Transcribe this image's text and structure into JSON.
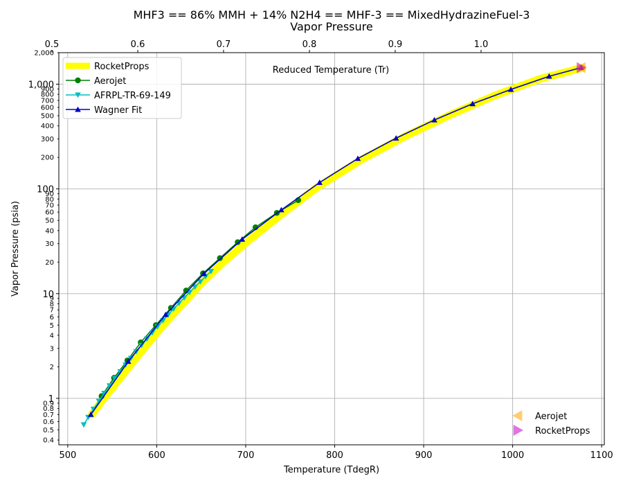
{
  "chart_data": {
    "type": "line",
    "title": "MHF3 == 86% MMH + 14% N2H4 == MHF-3 == MixedHydrazineFuel-3",
    "subtitle": "Vapor Pressure",
    "xlabel": "Temperature (TdegR)",
    "ylabel": "Vapor Pressure (psia)",
    "top_xlabel": "Reduced Temperature (Tr)",
    "xlim": [
      490,
      1103
    ],
    "ylim": [
      0.36,
      2000
    ],
    "yscale": "log",
    "grid": true,
    "x_ticks": [
      500,
      600,
      700,
      800,
      900,
      1000,
      1100
    ],
    "top_ticks": [
      0.5,
      0.6,
      0.7,
      0.8,
      0.9,
      1.0
    ],
    "top_ticks_x": [
      482.2,
      578.7,
      675.1,
      771.6,
      868.0,
      964.5
    ],
    "y_major_ticks": [
      1,
      10,
      100,
      1000
    ],
    "y_major_labels": [
      "1",
      "10",
      "100",
      "1,000"
    ],
    "y_minor_ticks": [
      0.4,
      0.5,
      0.6,
      0.7,
      0.8,
      0.9,
      2,
      3,
      4,
      5,
      6,
      7,
      8,
      9,
      20,
      30,
      40,
      50,
      60,
      70,
      80,
      90,
      200,
      300,
      400,
      500,
      600,
      700,
      800,
      900,
      2000
    ],
    "y_minor_labels": [
      "0.4",
      "0.5",
      "0.6",
      "0.7",
      "0.8",
      "0.9",
      "2",
      "3",
      "4",
      "5",
      "6",
      "7",
      "8",
      "9",
      "20",
      "30",
      "40",
      "50",
      "60",
      "70",
      "80",
      "90",
      "200",
      "300",
      "400",
      "500",
      "600",
      "700",
      "800",
      "900",
      "2,000"
    ],
    "legend_placement": "upper-left",
    "legend2_placement": "lower-right",
    "series": [
      {
        "name": "RocketProps",
        "color": "#ffff00",
        "style": "thick-line",
        "x": [
          527,
          540,
          555,
          570,
          585,
          600,
          615,
          630,
          650,
          675,
          700,
          740,
          780,
          830,
          880,
          930,
          980,
          1030,
          1078
        ],
        "y": [
          0.7,
          0.98,
          1.42,
          2.05,
          2.95,
          4.2,
          5.9,
          8.1,
          12.5,
          20,
          30.5,
          57,
          103,
          190,
          320,
          510,
          780,
          1120,
          1430
        ]
      },
      {
        "name": "Aerojet",
        "color": "#008000",
        "style": "line-circle",
        "x": [
          538,
          552,
          567,
          582,
          599,
          616,
          633,
          652,
          671,
          691,
          711,
          735,
          759
        ],
        "y": [
          1.05,
          1.57,
          2.3,
          3.42,
          5.0,
          7.3,
          10.7,
          15.6,
          21.8,
          31.0,
          43.0,
          59.0,
          78.0
        ]
      },
      {
        "name": "AFRPL-TR-69-149",
        "color": "#00bfbf",
        "style": "line-triangle-down",
        "x": [
          518,
          523,
          529,
          535,
          541,
          547,
          553,
          559,
          565,
          571,
          577,
          583,
          589,
          595,
          601,
          607,
          613,
          619,
          625,
          631,
          637,
          643,
          649,
          655,
          661
        ],
        "y": [
          0.56,
          0.66,
          0.79,
          0.94,
          1.12,
          1.32,
          1.55,
          1.8,
          2.09,
          2.42,
          2.8,
          3.22,
          3.7,
          4.24,
          4.85,
          5.54,
          6.3,
          7.15,
          8.1,
          9.15,
          10.3,
          11.6,
          13.0,
          14.6,
          16.3
        ]
      },
      {
        "name": "Wagner Fit",
        "color": "#0000cc",
        "style": "line-triangle-up",
        "x": [
          526,
          568,
          610,
          653,
          696,
          740,
          783,
          826,
          869,
          912,
          955,
          998,
          1041,
          1077
        ],
        "y": [
          0.7,
          2.25,
          6.3,
          15.5,
          33.0,
          63.0,
          115.0,
          195.0,
          305.0,
          455.0,
          650.0,
          890.0,
          1190.0,
          1440.0
        ]
      }
    ],
    "markers": [
      {
        "name": "Aerojet",
        "color": "#ffa500",
        "shape": "triangle-left",
        "x": 1077,
        "y": 1440
      },
      {
        "name": "RocketProps",
        "color": "#cc00cc",
        "shape": "triangle-right",
        "x": 1077,
        "y": 1440
      }
    ]
  }
}
